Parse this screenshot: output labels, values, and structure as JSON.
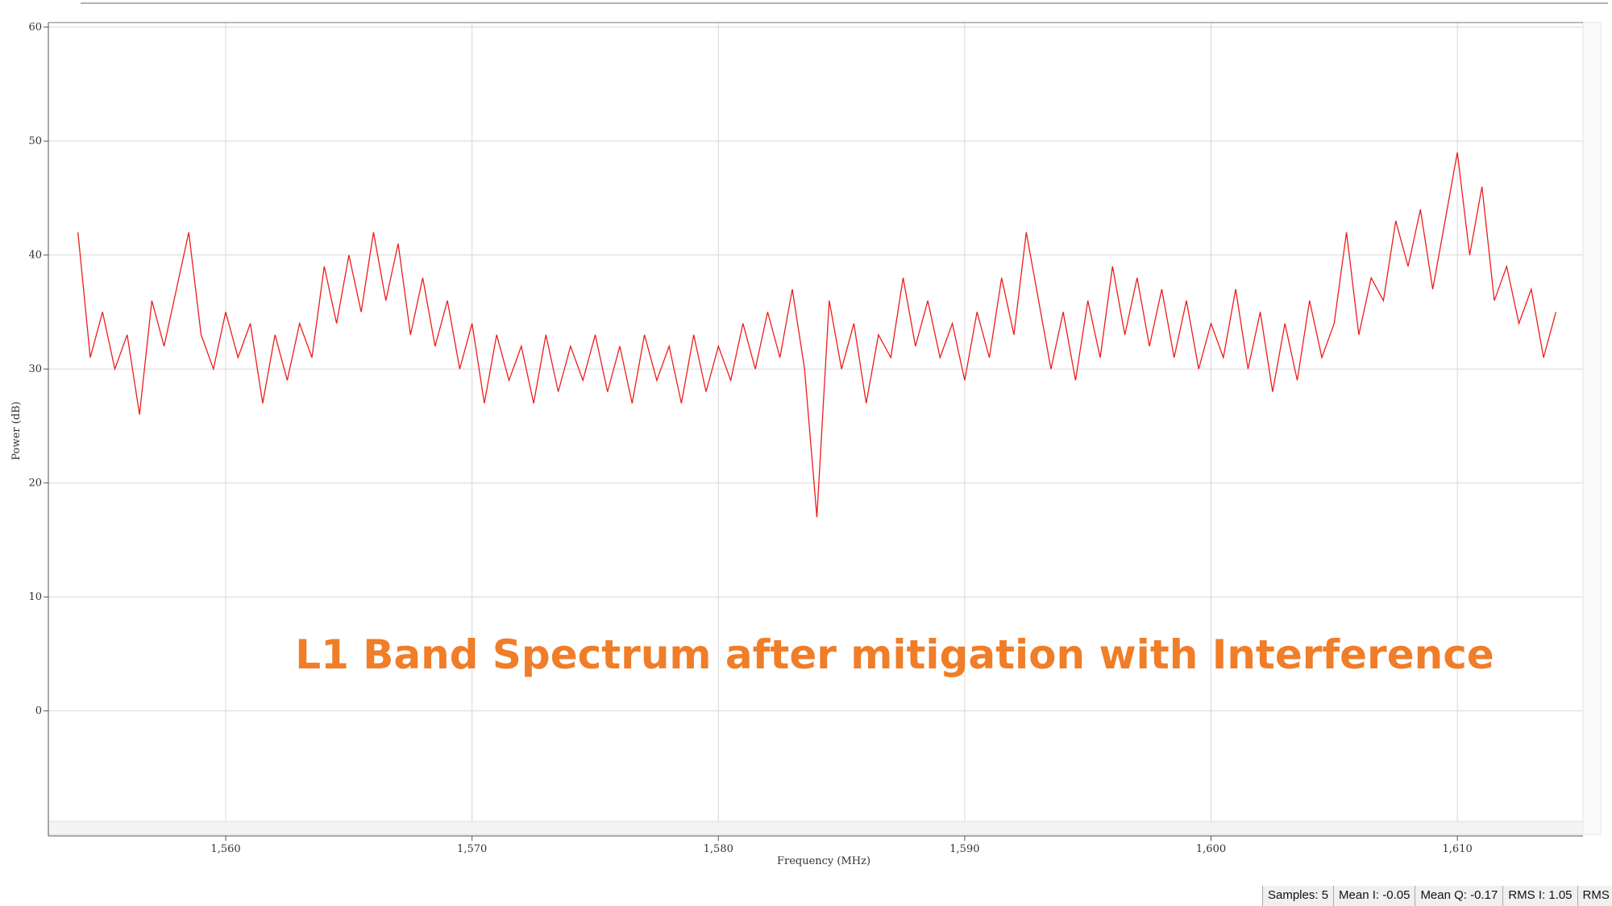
{
  "chart_data": {
    "type": "line",
    "annotation": "L1 Band Spectrum after mitigation with Interference",
    "xlabel": "Frequency (MHz)",
    "ylabel": "Power (dB)",
    "color": "#ee1c1c",
    "grid": true,
    "xlim": [
      1552.8,
      1615.1
    ],
    "ylim": [
      -9.7,
      60.4
    ],
    "xticks": [
      {
        "value": 1560,
        "label": "1,560"
      },
      {
        "value": 1570,
        "label": "1,570"
      },
      {
        "value": 1580,
        "label": "1,580"
      },
      {
        "value": 1590,
        "label": "1,590"
      },
      {
        "value": 1600,
        "label": "1,600"
      },
      {
        "value": 1610,
        "label": "1,610"
      }
    ],
    "yticks": [
      0,
      10,
      20,
      30,
      40,
      50,
      60
    ],
    "x": [
      1554.0,
      1554.5,
      1555.0,
      1555.5,
      1556.0,
      1556.5,
      1557.0,
      1557.5,
      1558.0,
      1558.5,
      1559.0,
      1559.5,
      1560.0,
      1560.5,
      1561.0,
      1561.5,
      1562.0,
      1562.5,
      1563.0,
      1563.5,
      1564.0,
      1564.5,
      1565.0,
      1565.5,
      1566.0,
      1566.5,
      1567.0,
      1567.5,
      1568.0,
      1568.5,
      1569.0,
      1569.5,
      1570.0,
      1570.5,
      1571.0,
      1571.5,
      1572.0,
      1572.5,
      1573.0,
      1573.5,
      1574.0,
      1574.5,
      1575.0,
      1575.5,
      1576.0,
      1576.5,
      1577.0,
      1577.5,
      1578.0,
      1578.5,
      1579.0,
      1579.5,
      1580.0,
      1580.5,
      1581.0,
      1581.5,
      1582.0,
      1582.5,
      1583.0,
      1583.5,
      1584.0,
      1584.5,
      1585.0,
      1585.5,
      1586.0,
      1586.5,
      1587.0,
      1587.5,
      1588.0,
      1588.5,
      1589.0,
      1589.5,
      1590.0,
      1590.5,
      1591.0,
      1591.5,
      1592.0,
      1592.5,
      1593.0,
      1593.5,
      1594.0,
      1594.5,
      1595.0,
      1595.5,
      1596.0,
      1596.5,
      1597.0,
      1597.5,
      1598.0,
      1598.5,
      1599.0,
      1599.5,
      1600.0,
      1600.5,
      1601.0,
      1601.5,
      1602.0,
      1602.5,
      1603.0,
      1603.5,
      1604.0,
      1604.5,
      1605.0,
      1605.5,
      1606.0,
      1606.5,
      1607.0,
      1607.5,
      1608.0,
      1608.5,
      1609.0,
      1609.5,
      1610.0,
      1610.5,
      1611.0,
      1611.5,
      1612.0,
      1612.5,
      1613.0,
      1613.5,
      1614.0
    ],
    "values": [
      42,
      31,
      35,
      30,
      33,
      26,
      36,
      32,
      37,
      42,
      33,
      30,
      35,
      31,
      34,
      27,
      33,
      29,
      34,
      31,
      39,
      34,
      40,
      35,
      42,
      36,
      41,
      33,
      38,
      32,
      36,
      30,
      34,
      27,
      33,
      29,
      32,
      27,
      33,
      28,
      32,
      29,
      33,
      28,
      32,
      27,
      33,
      29,
      32,
      27,
      33,
      28,
      32,
      29,
      34,
      30,
      35,
      31,
      37,
      30,
      17,
      36,
      30,
      34,
      27,
      33,
      31,
      38,
      32,
      36,
      31,
      34,
      29,
      35,
      31,
      38,
      33,
      42,
      36,
      30,
      35,
      29,
      36,
      31,
      39,
      33,
      38,
      32,
      37,
      31,
      36,
      30,
      34,
      31,
      37,
      30,
      35,
      28,
      34,
      29,
      36,
      31,
      34,
      42,
      33,
      38,
      36,
      43,
      39,
      44,
      37,
      43,
      49,
      40,
      46,
      36,
      39,
      34,
      37,
      31,
      35
    ]
  },
  "status_bar": [
    "Samples: 5",
    "Mean I: -0.05",
    "Mean Q: -0.17",
    "RMS I: 1.05",
    "RMS Q:"
  ]
}
